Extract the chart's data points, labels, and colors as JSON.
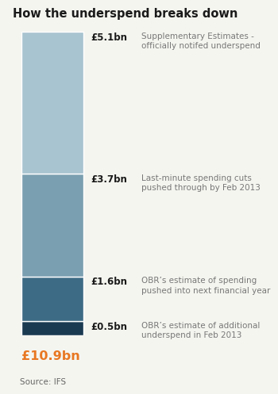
{
  "title": "How the underspend breaks down",
  "segments": [
    {
      "value": 5.1,
      "label": "£5.1bn",
      "desc": "Supplementary Estimates -\nofficially notifed underspend",
      "color": "#a8c4d0"
    },
    {
      "value": 3.7,
      "label": "£3.7bn",
      "desc": "Last-minute spending cuts\npushed through by Feb 2013",
      "color": "#7a9fb0"
    },
    {
      "value": 1.6,
      "label": "£1.6bn",
      "desc": "OBR’s estimate of spending\npushed into next financial year",
      "color": "#3d6b85"
    },
    {
      "value": 0.5,
      "label": "£0.5bn",
      "desc": "OBR’s estimate of additional\nunderspend in Feb 2013",
      "color": "#1a3a52"
    }
  ],
  "total_label": "£10.9bn",
  "total_color": "#e87722",
  "source": "Source: IFS",
  "background_color": "#f5f5f0",
  "title_fontsize": 10.5,
  "label_fontsize": 8.5,
  "desc_fontsize": 7.5,
  "total": 10.9
}
